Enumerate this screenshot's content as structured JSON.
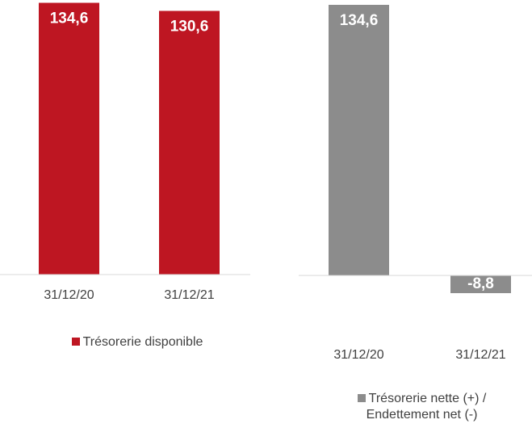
{
  "chart_data": [
    {
      "type": "bar",
      "categories": [
        "31/12/20",
        "31/12/21"
      ],
      "series": [
        {
          "name": "Trésorerie disponible",
          "color": "#be1622",
          "values": [
            134.6,
            130.6
          ],
          "value_labels": [
            "134,6",
            "130,6"
          ]
        }
      ],
      "ylim": [
        0,
        136
      ]
    },
    {
      "type": "bar",
      "categories": [
        "31/12/20",
        "31/12/21"
      ],
      "series": [
        {
          "name": "Trésorerie nette (+) / Endettement net (-)",
          "color": "#8c8c8c",
          "values": [
            134.6,
            -8.8
          ],
          "value_labels": [
            "134,6",
            "-8,8"
          ]
        }
      ],
      "ylim": [
        -10,
        135
      ]
    }
  ]
}
